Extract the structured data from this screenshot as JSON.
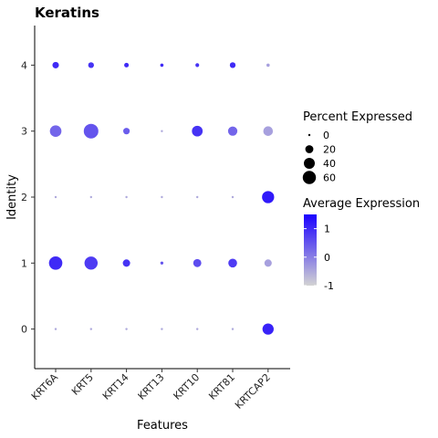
{
  "chart_data": {
    "type": "dot",
    "title": "Keratins",
    "xlabel": "Features",
    "ylabel": "Identity",
    "categories": [
      "KRT6A",
      "KRT5",
      "KRT14",
      "KRT13",
      "KRT10",
      "KRT81",
      "KRTCAP2"
    ],
    "identities": [
      "0",
      "1",
      "2",
      "3",
      "4"
    ],
    "grid": false,
    "cells": [
      {
        "feature": "KRT6A",
        "identity": "0",
        "pct": 0.5,
        "avg": -0.5
      },
      {
        "feature": "KRT6A",
        "identity": "1",
        "pct": 62,
        "avg": 1.0
      },
      {
        "feature": "KRT6A",
        "identity": "2",
        "pct": 0.5,
        "avg": -0.5
      },
      {
        "feature": "KRT6A",
        "identity": "3",
        "pct": 45,
        "avg": 0.3
      },
      {
        "feature": "KRT6A",
        "identity": "4",
        "pct": 12,
        "avg": 1.0
      },
      {
        "feature": "KRT5",
        "identity": "0",
        "pct": 0.5,
        "avg": -0.5
      },
      {
        "feature": "KRT5",
        "identity": "1",
        "pct": 60,
        "avg": 0.8
      },
      {
        "feature": "KRT5",
        "identity": "2",
        "pct": 0.5,
        "avg": -0.5
      },
      {
        "feature": "KRT5",
        "identity": "3",
        "pct": 75,
        "avg": 0.5
      },
      {
        "feature": "KRT5",
        "identity": "4",
        "pct": 9,
        "avg": 0.9
      },
      {
        "feature": "KRT14",
        "identity": "0",
        "pct": 0.5,
        "avg": -0.5
      },
      {
        "feature": "KRT14",
        "identity": "1",
        "pct": 16,
        "avg": 0.9
      },
      {
        "feature": "KRT14",
        "identity": "2",
        "pct": 0.5,
        "avg": -0.5
      },
      {
        "feature": "KRT14",
        "identity": "3",
        "pct": 12,
        "avg": 0.4
      },
      {
        "feature": "KRT14",
        "identity": "4",
        "pct": 5,
        "avg": 1.0
      },
      {
        "feature": "KRT13",
        "identity": "0",
        "pct": 0.5,
        "avg": -0.5
      },
      {
        "feature": "KRT13",
        "identity": "1",
        "pct": 1.5,
        "avg": 0.5
      },
      {
        "feature": "KRT13",
        "identity": "2",
        "pct": 0.5,
        "avg": -0.5
      },
      {
        "feature": "KRT13",
        "identity": "3",
        "pct": 0.5,
        "avg": -0.5
      },
      {
        "feature": "KRT13",
        "identity": "4",
        "pct": 2,
        "avg": 1.0
      },
      {
        "feature": "KRT10",
        "identity": "0",
        "pct": 0.5,
        "avg": -0.5
      },
      {
        "feature": "KRT10",
        "identity": "1",
        "pct": 20,
        "avg": 0.6
      },
      {
        "feature": "KRT10",
        "identity": "2",
        "pct": 0.5,
        "avg": -0.5
      },
      {
        "feature": "KRT10",
        "identity": "3",
        "pct": 38,
        "avg": 0.9
      },
      {
        "feature": "KRT10",
        "identity": "4",
        "pct": 3,
        "avg": 0.9
      },
      {
        "feature": "KRT81",
        "identity": "0",
        "pct": 0.5,
        "avg": -0.5
      },
      {
        "feature": "KRT81",
        "identity": "1",
        "pct": 24,
        "avg": 0.8
      },
      {
        "feature": "KRT81",
        "identity": "2",
        "pct": 0.5,
        "avg": -0.5
      },
      {
        "feature": "KRT81",
        "identity": "3",
        "pct": 28,
        "avg": 0.3
      },
      {
        "feature": "KRT81",
        "identity": "4",
        "pct": 9,
        "avg": 1.0
      },
      {
        "feature": "KRTCAP2",
        "identity": "0",
        "pct": 42,
        "avg": 1.1
      },
      {
        "feature": "KRTCAP2",
        "identity": "1",
        "pct": 16,
        "avg": -0.4
      },
      {
        "feature": "KRTCAP2",
        "identity": "2",
        "pct": 50,
        "avg": 1.2
      },
      {
        "feature": "KRTCAP2",
        "identity": "3",
        "pct": 30,
        "avg": -0.4
      },
      {
        "feature": "KRTCAP2",
        "identity": "4",
        "pct": 2,
        "avg": -0.4
      }
    ],
    "legend_size": {
      "title": "Percent Expressed",
      "values": [
        0,
        20,
        40,
        60
      ],
      "labels": [
        "0",
        "20",
        "40",
        "60"
      ]
    },
    "legend_color": {
      "title": "Average Expression",
      "ticks": [
        1,
        0,
        -1
      ],
      "labels": [
        "1",
        "0",
        "-1"
      ],
      "range": [
        -1,
        1.5
      ],
      "low_color": "#d3d3d3",
      "high_color": "#1a00ff"
    },
    "legend_placement": "right",
    "ylim": [
      -0.6,
      4.6
    ]
  }
}
